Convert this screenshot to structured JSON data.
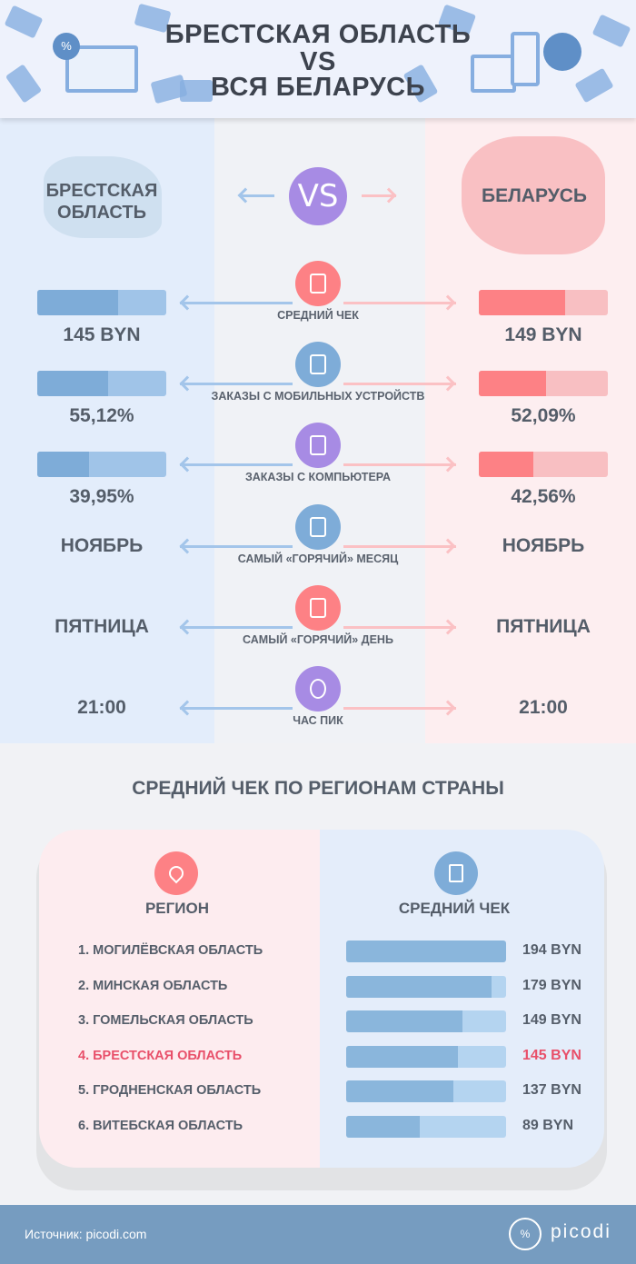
{
  "header": {
    "title_line1": "БРЕСТСКАЯ ОБЛАСТЬ",
    "title_line2": "VS",
    "title_line3": "ВСЯ БЕЛАРУСЬ"
  },
  "compare": {
    "left_title": "БРЕСТСКАЯ ОБЛАСТЬ",
    "right_title": "БЕЛАРУСЬ",
    "vs": "VS",
    "colors": {
      "left": "#7eacd8",
      "right": "#fd8185",
      "purple": "#a78be4"
    },
    "rows": [
      {
        "label": "СРЕДНИЙ ЧЕК",
        "icon": "receipt-icon",
        "left": "145 BYN",
        "right": "149 BYN",
        "left_fill": 0.63,
        "right_fill": 0.67
      },
      {
        "label": "ЗАКАЗЫ С МОБИЛЬНЫХ УСТРОЙСТВ",
        "icon": "smartphone-icon",
        "left": "55,12%",
        "right": "52,09%",
        "left_fill": 0.5512,
        "right_fill": 0.5209
      },
      {
        "label": "ЗАКАЗЫ С КОМПЬЮТЕРА",
        "icon": "laptop-icon",
        "left": "39,95%",
        "right": "42,56%",
        "left_fill": 0.3995,
        "right_fill": 0.4256
      },
      {
        "label": "САМЫЙ «ГОРЯЧИЙ» МЕСЯЦ",
        "icon": "calendar-icon",
        "left": "НОЯБРЬ",
        "right": "НОЯБРЬ"
      },
      {
        "label": "САМЫЙ «ГОРЯЧИЙ» ДЕНЬ",
        "icon": "calendar-check-icon",
        "left": "ПЯТНИЦА",
        "right": "ПЯТНИЦА"
      },
      {
        "label": "ЧАС ПИК",
        "icon": "clock-icon",
        "left": "21:00",
        "right": "21:00"
      }
    ]
  },
  "regions": {
    "title": "СРЕДНИЙ ЧЕК ПО РЕГИОНАМ СТРАНЫ",
    "col_region": "РЕГИОН",
    "col_check": "СРЕДНИЙ ЧЕК",
    "highlight_color": "#e8506a",
    "items": [
      {
        "name": "1. МОГИЛЁВСКАЯ ОБЛАСТЬ",
        "value": "194 BYN",
        "fill": 1.0
      },
      {
        "name": "2. МИНСКАЯ ОБЛАСТЬ",
        "value": "179 BYN",
        "fill": 0.91
      },
      {
        "name": "3. ГОМЕЛЬСКАЯ ОБЛАСТЬ",
        "value": "149 BYN",
        "fill": 0.73
      },
      {
        "name": "4. БРЕСТСКАЯ ОБЛАСТЬ",
        "value": "145 BYN",
        "fill": 0.7,
        "highlight": true
      },
      {
        "name": "5. ГРОДНЕНСКАЯ ОБЛАСТЬ",
        "value": "137 BYN",
        "fill": 0.67
      },
      {
        "name": "6. ВИТЕБСКАЯ ОБЛАСТЬ",
        "value": "89 BYN",
        "fill": 0.46
      }
    ]
  },
  "footer": {
    "source": "Источник: picodi.com",
    "logo": "picodi"
  }
}
